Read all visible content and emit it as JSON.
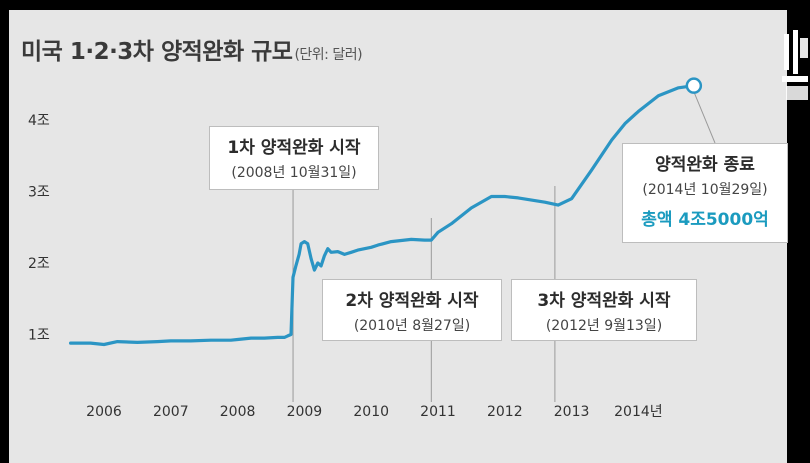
{
  "title": {
    "main": "미국 1·2·3차 양적완화 규모",
    "unit": "(단위: 달러)"
  },
  "annotations": [
    {
      "line1": "1차 양적완화 시작",
      "line2": "(2008년 10월31일)",
      "line3": ""
    },
    {
      "line1": "2차 양적완화 시작",
      "line2": "(2010년 8월27일)",
      "line3": ""
    },
    {
      "line1": "3차 양적완화 시작",
      "line2": "(2012년 9월13일)",
      "line3": ""
    },
    {
      "line1": "양적완화 종료",
      "line2": "(2014년 10월29일)",
      "line3": "총액 4조5000억"
    }
  ],
  "colors": {
    "line": "#2b95c4",
    "total": "#1b9bbf",
    "background": "#e6e6e6"
  },
  "chart_data": {
    "type": "line",
    "title": "미국 1·2·3차 양적완화 규모",
    "subtitle": "(단위: 달러)",
    "xlabel": "",
    "ylabel": "",
    "x_ticks": [
      "2006",
      "2007",
      "2008",
      "2009",
      "2010",
      "2011",
      "2012",
      "2013",
      "2014년"
    ],
    "y_ticks": [
      "1조",
      "2조",
      "3조",
      "4조"
    ],
    "y_tick_values": [
      1,
      2,
      3,
      4
    ],
    "xlim": [
      2005.4,
      2015.6
    ],
    "ylim": [
      0,
      4.6
    ],
    "grid": false,
    "x": [
      2005.5,
      2005.8,
      2006.0,
      2006.2,
      2006.5,
      2006.8,
      2007.0,
      2007.3,
      2007.6,
      2007.9,
      2008.0,
      2008.2,
      2008.4,
      2008.6,
      2008.7,
      2008.75,
      2008.8,
      2008.83,
      2008.87,
      2008.92,
      2008.95,
      2009.0,
      2009.05,
      2009.1,
      2009.15,
      2009.2,
      2009.25,
      2009.3,
      2009.35,
      2009.4,
      2009.5,
      2009.6,
      2009.7,
      2009.8,
      2009.9,
      2010.0,
      2010.1,
      2010.3,
      2010.6,
      2010.8,
      2010.9,
      2011.0,
      2011.2,
      2011.5,
      2011.8,
      2012.0,
      2012.2,
      2012.4,
      2012.6,
      2012.8,
      2013.0,
      2013.3,
      2013.6,
      2013.8,
      2014.0,
      2014.3,
      2014.6,
      2014.83
    ],
    "values": [
      0.88,
      0.88,
      0.86,
      0.9,
      0.89,
      0.9,
      0.91,
      0.91,
      0.92,
      0.92,
      0.93,
      0.95,
      0.95,
      0.96,
      0.96,
      0.98,
      1.0,
      1.8,
      1.95,
      2.12,
      2.27,
      2.3,
      2.27,
      2.06,
      1.9,
      2.0,
      1.96,
      2.1,
      2.2,
      2.15,
      2.16,
      2.12,
      2.15,
      2.18,
      2.2,
      2.22,
      2.25,
      2.3,
      2.33,
      2.32,
      2.32,
      2.43,
      2.55,
      2.77,
      2.93,
      2.93,
      2.91,
      2.88,
      2.85,
      2.81,
      2.9,
      3.3,
      3.72,
      3.95,
      4.12,
      4.34,
      4.45,
      4.48
    ],
    "events": [
      {
        "label": "1차 양적완화 시작",
        "x": 2008.83
      },
      {
        "label": "2차 양적완화 시작",
        "x": 2010.9
      },
      {
        "label": "3차 양적완화 시작",
        "x": 2012.75
      },
      {
        "label": "양적완화 종료",
        "x": 2014.83,
        "value": 4.48
      }
    ]
  }
}
